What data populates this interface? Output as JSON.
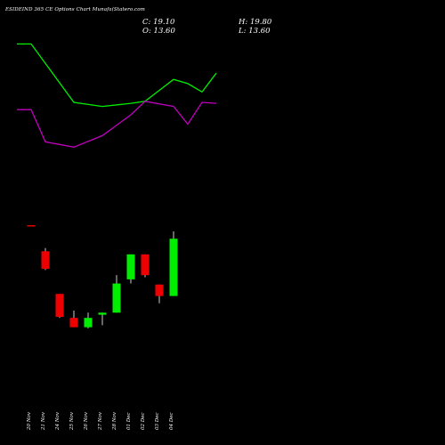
{
  "header": {
    "title": "ESIDEIND 365 CE Options  Chart Munafa(Statero.com",
    "close_text": "C: 19.10",
    "high_text": "H: 19.80",
    "open_text": "O: 13.60",
    "low_text": "L: 13.60"
  },
  "colors": {
    "background": "#000000",
    "bull": "#00ee00",
    "bear": "#ee0000",
    "upper_band": "#00ee00",
    "lower_band": "#c000c0",
    "text": "#ffffff"
  },
  "chart_data": {
    "type": "candlestick",
    "categories": [
      "20 Nov",
      "21 Nov",
      "24 Nov",
      "25 Nov",
      "26 Nov",
      "27 Nov",
      "28 Nov",
      "01 Dec",
      "02 Dec",
      "03 Dec",
      "04 Dec"
    ],
    "ohlc": [
      {
        "date": "20 Nov",
        "open": 20.4,
        "high": 20.4,
        "low": 20.3,
        "close": 20.3
      },
      {
        "date": "21 Nov",
        "open": 17.9,
        "high": 18.2,
        "low": 16.1,
        "close": 16.2
      },
      {
        "date": "24 Nov",
        "open": 13.8,
        "high": 13.8,
        "low": 11.5,
        "close": 11.6
      },
      {
        "date": "25 Nov",
        "open": 11.5,
        "high": 12.2,
        "low": 10.6,
        "close": 10.6
      },
      {
        "date": "26 Nov",
        "open": 10.6,
        "high": 12.0,
        "low": 10.5,
        "close": 11.5
      },
      {
        "date": "27 Nov",
        "open": 11.8,
        "high": 12.0,
        "low": 10.8,
        "close": 12.0
      },
      {
        "date": "28 Nov",
        "open": 12.0,
        "high": 15.6,
        "low": 12.0,
        "close": 14.8
      },
      {
        "date": "01 Dec",
        "open": 15.2,
        "high": 17.6,
        "low": 14.8,
        "close": 17.6
      },
      {
        "date": "02 Dec",
        "open": 17.6,
        "high": 17.6,
        "low": 15.4,
        "close": 15.6
      },
      {
        "date": "03 Dec",
        "open": 14.7,
        "high": 14.7,
        "low": 12.9,
        "close": 13.6
      },
      {
        "date": "04 Dec",
        "open": 13.6,
        "high": 19.8,
        "low": 13.6,
        "close": 19.1
      }
    ],
    "overlays": [
      {
        "color": "#00ee00",
        "x": [
          -1,
          0,
          3,
          5,
          7,
          8,
          10,
          11,
          12,
          13
        ],
        "values": [
          37.8,
          37.8,
          32.2,
          31.8,
          32.1,
          32.3,
          34.4,
          34.0,
          33.2,
          35.0
        ]
      },
      {
        "color": "#c000c0",
        "x": [
          -1,
          0,
          1,
          3,
          5,
          7,
          8,
          10,
          11,
          12,
          13
        ],
        "values": [
          31.5,
          31.5,
          28.4,
          27.9,
          29.0,
          31.0,
          32.3,
          31.8,
          30.1,
          32.2,
          32.1
        ]
      }
    ],
    "ylim": [
      7,
      41
    ]
  }
}
